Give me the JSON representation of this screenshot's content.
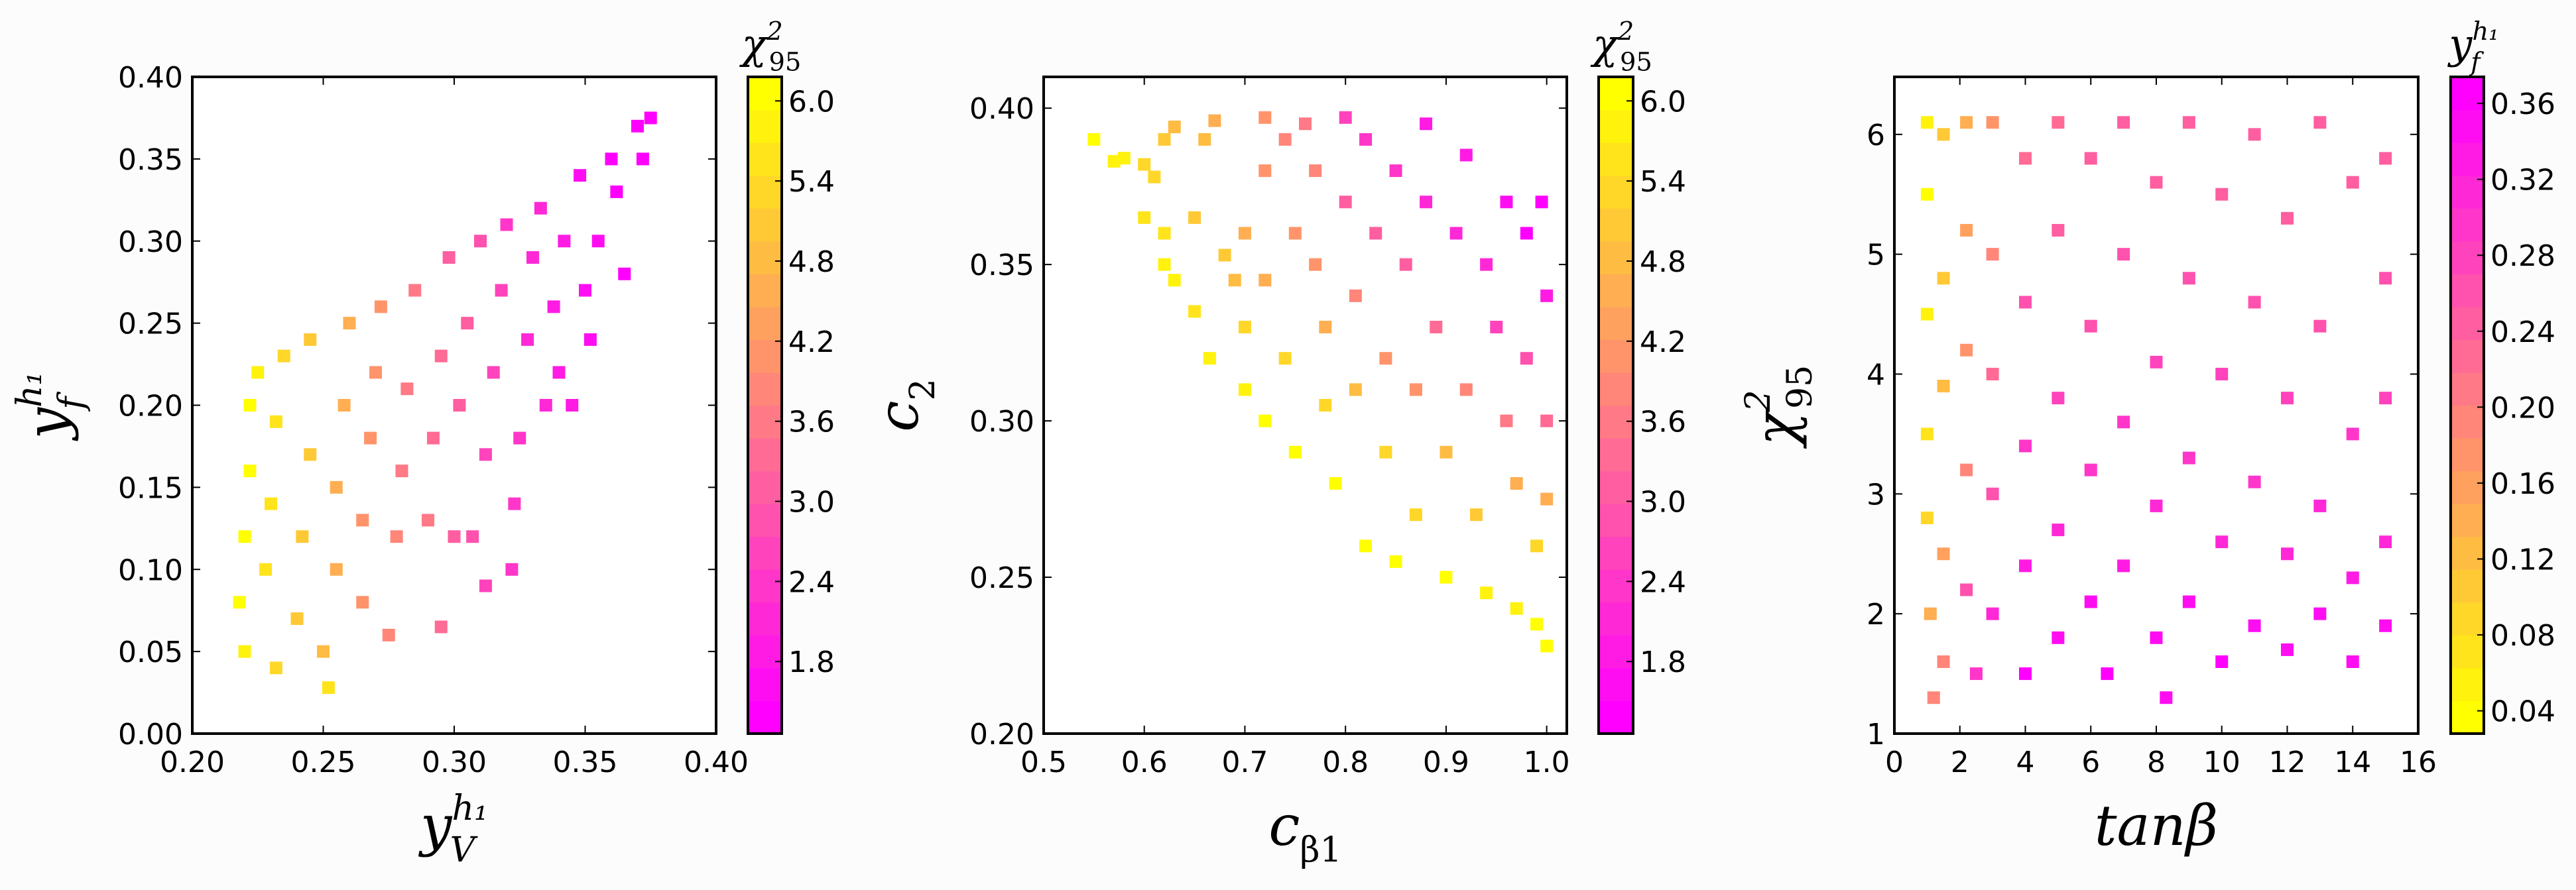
{
  "chart_data": [
    {
      "type": "scatter",
      "xlabel": {
        "base": "y",
        "sub": "V",
        "sup": "h₁"
      },
      "ylabel": {
        "base": "y",
        "sub": "f",
        "sup": "h₁"
      },
      "colorbar_label": {
        "base": "χ",
        "sub": "95",
        "sup": "2"
      },
      "xlim": [
        0.2,
        0.4
      ],
      "ylim": [
        0.0,
        0.4
      ],
      "xticks": [
        "0.20",
        "0.25",
        "0.30",
        "0.35",
        "0.40"
      ],
      "yticks": [
        "0.00",
        "0.05",
        "0.10",
        "0.15",
        "0.20",
        "0.25",
        "0.30",
        "0.35",
        "0.40"
      ],
      "clim": [
        1.26,
        6.18
      ],
      "cticks": [
        "1.8",
        "2.4",
        "3.0",
        "3.6",
        "4.2",
        "4.8",
        "5.4",
        "6.0"
      ],
      "colormap": "spring (magenta low → yellow high)",
      "marker": "square",
      "grid": false,
      "points": [
        [
          0.218,
          0.08,
          6.0
        ],
        [
          0.22,
          0.12,
          6.0
        ],
        [
          0.222,
          0.16,
          6.0
        ],
        [
          0.222,
          0.2,
          6.0
        ],
        [
          0.225,
          0.22,
          5.9
        ],
        [
          0.22,
          0.05,
          5.8
        ],
        [
          0.228,
          0.1,
          5.6
        ],
        [
          0.23,
          0.14,
          5.6
        ],
        [
          0.232,
          0.19,
          5.5
        ],
        [
          0.235,
          0.23,
          5.4
        ],
        [
          0.232,
          0.04,
          5.3
        ],
        [
          0.24,
          0.07,
          5.0
        ],
        [
          0.242,
          0.12,
          5.0
        ],
        [
          0.245,
          0.17,
          5.0
        ],
        [
          0.245,
          0.24,
          5.0
        ],
        [
          0.25,
          0.05,
          4.8
        ],
        [
          0.252,
          0.028,
          5.6
        ],
        [
          0.255,
          0.1,
          4.6
        ],
        [
          0.255,
          0.15,
          4.6
        ],
        [
          0.258,
          0.2,
          4.6
        ],
        [
          0.26,
          0.25,
          4.5
        ],
        [
          0.265,
          0.08,
          4.2
        ],
        [
          0.265,
          0.13,
          4.2
        ],
        [
          0.268,
          0.18,
          4.1
        ],
        [
          0.27,
          0.22,
          4.1
        ],
        [
          0.272,
          0.26,
          4.0
        ],
        [
          0.275,
          0.06,
          3.8
        ],
        [
          0.278,
          0.12,
          3.9
        ],
        [
          0.28,
          0.16,
          3.7
        ],
        [
          0.282,
          0.21,
          3.7
        ],
        [
          0.285,
          0.27,
          3.6
        ],
        [
          0.29,
          0.13,
          3.5
        ],
        [
          0.292,
          0.18,
          3.4
        ],
        [
          0.295,
          0.065,
          3.3
        ],
        [
          0.295,
          0.23,
          3.3
        ],
        [
          0.298,
          0.29,
          3.2
        ],
        [
          0.3,
          0.12,
          3.1
        ],
        [
          0.302,
          0.2,
          3.0
        ],
        [
          0.305,
          0.25,
          3.0
        ],
        [
          0.307,
          0.12,
          2.9
        ],
        [
          0.31,
          0.3,
          2.8
        ],
        [
          0.312,
          0.09,
          2.7
        ],
        [
          0.312,
          0.17,
          2.7
        ],
        [
          0.315,
          0.22,
          2.6
        ],
        [
          0.318,
          0.27,
          2.5
        ],
        [
          0.32,
          0.31,
          2.4
        ],
        [
          0.322,
          0.1,
          2.4
        ],
        [
          0.323,
          0.14,
          2.3
        ],
        [
          0.325,
          0.18,
          2.3
        ],
        [
          0.328,
          0.24,
          2.2
        ],
        [
          0.33,
          0.29,
          2.1
        ],
        [
          0.333,
          0.32,
          2.0
        ],
        [
          0.335,
          0.2,
          2.0
        ],
        [
          0.338,
          0.26,
          1.9
        ],
        [
          0.34,
          0.22,
          1.9
        ],
        [
          0.342,
          0.3,
          1.8
        ],
        [
          0.345,
          0.2,
          1.8
        ],
        [
          0.348,
          0.34,
          1.7
        ],
        [
          0.35,
          0.27,
          1.7
        ],
        [
          0.352,
          0.24,
          1.7
        ],
        [
          0.355,
          0.3,
          1.6
        ],
        [
          0.36,
          0.35,
          1.5
        ],
        [
          0.362,
          0.33,
          1.5
        ],
        [
          0.365,
          0.28,
          1.5
        ],
        [
          0.37,
          0.37,
          1.4
        ],
        [
          0.372,
          0.35,
          1.4
        ],
        [
          0.375,
          0.375,
          1.3
        ]
      ]
    },
    {
      "type": "scatter",
      "xlabel": {
        "base": "c",
        "sub": "β1",
        "sup": ""
      },
      "ylabel": {
        "base": "c",
        "sub": "2",
        "sup": ""
      },
      "colorbar_label": {
        "base": "χ",
        "sub": "95",
        "sup": "2"
      },
      "xlim": [
        0.5,
        1.02
      ],
      "ylim": [
        0.2,
        0.41
      ],
      "xticks": [
        "0.5",
        "0.6",
        "0.7",
        "0.8",
        "0.9",
        "1.0"
      ],
      "yticks": [
        "0.20",
        "0.25",
        "0.30",
        "0.35",
        "0.40"
      ],
      "clim": [
        1.26,
        6.18
      ],
      "cticks": [
        "1.8",
        "2.4",
        "3.0",
        "3.6",
        "4.2",
        "4.8",
        "5.4",
        "6.0"
      ],
      "colormap": "spring (magenta low → yellow high)",
      "marker": "square",
      "grid": false,
      "points": [
        [
          0.55,
          0.39,
          6.0
        ],
        [
          0.57,
          0.383,
          5.9
        ],
        [
          0.58,
          0.384,
          5.8
        ],
        [
          0.6,
          0.382,
          5.3
        ],
        [
          0.61,
          0.378,
          5.2
        ],
        [
          0.6,
          0.365,
          5.6
        ],
        [
          0.62,
          0.39,
          5.0
        ],
        [
          0.63,
          0.394,
          4.8
        ],
        [
          0.62,
          0.36,
          5.6
        ],
        [
          0.62,
          0.35,
          5.8
        ],
        [
          0.63,
          0.345,
          5.7
        ],
        [
          0.65,
          0.365,
          5.0
        ],
        [
          0.65,
          0.335,
          5.6
        ],
        [
          0.66,
          0.39,
          4.8
        ],
        [
          0.67,
          0.396,
          4.6
        ],
        [
          0.665,
          0.32,
          5.8
        ],
        [
          0.68,
          0.353,
          5.0
        ],
        [
          0.69,
          0.345,
          4.8
        ],
        [
          0.7,
          0.36,
          4.5
        ],
        [
          0.7,
          0.33,
          5.2
        ],
        [
          0.7,
          0.31,
          5.8
        ],
        [
          0.72,
          0.397,
          4.0
        ],
        [
          0.72,
          0.38,
          4.0
        ],
        [
          0.72,
          0.345,
          4.6
        ],
        [
          0.72,
          0.3,
          6.0
        ],
        [
          0.74,
          0.39,
          3.8
        ],
        [
          0.74,
          0.32,
          5.4
        ],
        [
          0.75,
          0.36,
          4.2
        ],
        [
          0.75,
          0.29,
          6.0
        ],
        [
          0.76,
          0.395,
          3.5
        ],
        [
          0.77,
          0.38,
          3.8
        ],
        [
          0.77,
          0.35,
          4.2
        ],
        [
          0.78,
          0.33,
          4.6
        ],
        [
          0.78,
          0.305,
          5.4
        ],
        [
          0.79,
          0.28,
          6.0
        ],
        [
          0.8,
          0.397,
          2.6
        ],
        [
          0.8,
          0.37,
          3.2
        ],
        [
          0.81,
          0.34,
          3.8
        ],
        [
          0.81,
          0.31,
          4.8
        ],
        [
          0.82,
          0.39,
          2.3
        ],
        [
          0.82,
          0.26,
          6.0
        ],
        [
          0.83,
          0.36,
          3.2
        ],
        [
          0.84,
          0.32,
          4.2
        ],
        [
          0.84,
          0.29,
          5.2
        ],
        [
          0.85,
          0.38,
          2.3
        ],
        [
          0.85,
          0.255,
          6.0
        ],
        [
          0.86,
          0.35,
          3.0
        ],
        [
          0.87,
          0.31,
          4.0
        ],
        [
          0.87,
          0.27,
          5.4
        ],
        [
          0.88,
          0.395,
          1.9
        ],
        [
          0.88,
          0.37,
          2.2
        ],
        [
          0.89,
          0.33,
          3.4
        ],
        [
          0.9,
          0.25,
          6.0
        ],
        [
          0.9,
          0.29,
          4.8
        ],
        [
          0.91,
          0.36,
          2.0
        ],
        [
          0.92,
          0.385,
          1.8
        ],
        [
          0.92,
          0.31,
          3.8
        ],
        [
          0.93,
          0.27,
          5.0
        ],
        [
          0.94,
          0.245,
          5.9
        ],
        [
          0.94,
          0.35,
          2.0
        ],
        [
          0.95,
          0.33,
          2.6
        ],
        [
          0.96,
          0.3,
          3.6
        ],
        [
          0.96,
          0.37,
          1.6
        ],
        [
          0.97,
          0.24,
          5.8
        ],
        [
          0.97,
          0.28,
          4.6
        ],
        [
          0.98,
          0.36,
          1.5
        ],
        [
          0.98,
          0.32,
          2.8
        ],
        [
          0.99,
          0.235,
          6.0
        ],
        [
          0.99,
          0.26,
          5.2
        ],
        [
          0.995,
          0.37,
          1.4
        ],
        [
          1.0,
          0.34,
          1.8
        ],
        [
          1.0,
          0.3,
          3.4
        ],
        [
          1.0,
          0.228,
          6.1
        ],
        [
          1.0,
          0.275,
          4.6
        ]
      ]
    },
    {
      "type": "scatter",
      "xlabel": {
        "base": "tanβ",
        "sub": "",
        "sup": ""
      },
      "ylabel": {
        "base": "χ",
        "sub": "95",
        "sup": "2"
      },
      "colorbar_label": {
        "base": "y",
        "sub": "f",
        "sup": "h₁"
      },
      "xlim": [
        0,
        16
      ],
      "ylim": [
        1,
        6.48
      ],
      "xticks": [
        "0",
        "2",
        "4",
        "6",
        "8",
        "10",
        "12",
        "14",
        "16"
      ],
      "yticks": [
        "1",
        "2",
        "3",
        "4",
        "5",
        "6"
      ],
      "clim": [
        0.028,
        0.374
      ],
      "cticks": [
        "0.04",
        "0.08",
        "0.12",
        "0.16",
        "0.20",
        "0.24",
        "0.28",
        "0.32",
        "0.36"
      ],
      "colormap": "spring_r (yellow low → magenta high)",
      "marker": "square",
      "grid": false,
      "points": [
        [
          1.0,
          6.1,
          0.05
        ],
        [
          1.0,
          5.5,
          0.04
        ],
        [
          1.0,
          4.5,
          0.06
        ],
        [
          1.0,
          3.5,
          0.07
        ],
        [
          1.0,
          2.8,
          0.08
        ],
        [
          1.1,
          2.0,
          0.14
        ],
        [
          1.2,
          1.3,
          0.2
        ],
        [
          1.5,
          6.0,
          0.1
        ],
        [
          1.5,
          4.8,
          0.11
        ],
        [
          1.5,
          3.9,
          0.12
        ],
        [
          1.5,
          2.5,
          0.15
        ],
        [
          1.5,
          1.6,
          0.19
        ],
        [
          2.2,
          6.1,
          0.14
        ],
        [
          2.2,
          5.2,
          0.15
        ],
        [
          2.2,
          4.2,
          0.17
        ],
        [
          2.2,
          3.2,
          0.2
        ],
        [
          2.2,
          2.2,
          0.26
        ],
        [
          2.5,
          1.5,
          0.3
        ],
        [
          3.0,
          6.1,
          0.18
        ],
        [
          3.0,
          5.0,
          0.2
        ],
        [
          3.0,
          4.0,
          0.23
        ],
        [
          3.0,
          3.0,
          0.27
        ],
        [
          3.0,
          2.0,
          0.32
        ],
        [
          4.0,
          5.8,
          0.22
        ],
        [
          4.0,
          4.6,
          0.26
        ],
        [
          4.0,
          3.4,
          0.3
        ],
        [
          4.0,
          2.4,
          0.33
        ],
        [
          4.0,
          1.5,
          0.36
        ],
        [
          5.0,
          6.1,
          0.23
        ],
        [
          5.0,
          5.2,
          0.25
        ],
        [
          5.0,
          3.8,
          0.28
        ],
        [
          5.0,
          2.7,
          0.32
        ],
        [
          5.0,
          1.8,
          0.35
        ],
        [
          6.0,
          5.8,
          0.24
        ],
        [
          6.0,
          4.4,
          0.27
        ],
        [
          6.0,
          3.2,
          0.3
        ],
        [
          6.0,
          2.1,
          0.35
        ],
        [
          6.5,
          1.5,
          0.36
        ],
        [
          7.0,
          6.1,
          0.24
        ],
        [
          7.0,
          5.0,
          0.26
        ],
        [
          7.0,
          3.6,
          0.29
        ],
        [
          7.0,
          2.4,
          0.33
        ],
        [
          8.0,
          5.6,
          0.25
        ],
        [
          8.0,
          4.1,
          0.28
        ],
        [
          8.0,
          2.9,
          0.31
        ],
        [
          8.0,
          1.8,
          0.35
        ],
        [
          8.3,
          1.3,
          0.34
        ],
        [
          9.0,
          6.1,
          0.24
        ],
        [
          9.0,
          4.8,
          0.26
        ],
        [
          9.0,
          3.3,
          0.3
        ],
        [
          9.0,
          2.1,
          0.34
        ],
        [
          10.0,
          5.5,
          0.25
        ],
        [
          10.0,
          4.0,
          0.28
        ],
        [
          10.0,
          2.6,
          0.32
        ],
        [
          10.0,
          1.6,
          0.36
        ],
        [
          11.0,
          6.0,
          0.24
        ],
        [
          11.0,
          4.6,
          0.27
        ],
        [
          11.0,
          3.1,
          0.3
        ],
        [
          11.0,
          1.9,
          0.35
        ],
        [
          12.0,
          5.3,
          0.25
        ],
        [
          12.0,
          3.8,
          0.28
        ],
        [
          12.0,
          2.5,
          0.32
        ],
        [
          12.0,
          1.7,
          0.35
        ],
        [
          13.0,
          6.1,
          0.24
        ],
        [
          13.0,
          4.4,
          0.27
        ],
        [
          13.0,
          2.9,
          0.31
        ],
        [
          13.0,
          2.0,
          0.34
        ],
        [
          14.0,
          5.6,
          0.25
        ],
        [
          14.0,
          3.5,
          0.29
        ],
        [
          14.0,
          2.3,
          0.33
        ],
        [
          14.0,
          1.6,
          0.35
        ],
        [
          15.0,
          5.8,
          0.25
        ],
        [
          15.0,
          4.8,
          0.26
        ],
        [
          15.0,
          3.8,
          0.28
        ],
        [
          15.0,
          2.6,
          0.32
        ],
        [
          15.0,
          1.9,
          0.34
        ]
      ]
    }
  ]
}
